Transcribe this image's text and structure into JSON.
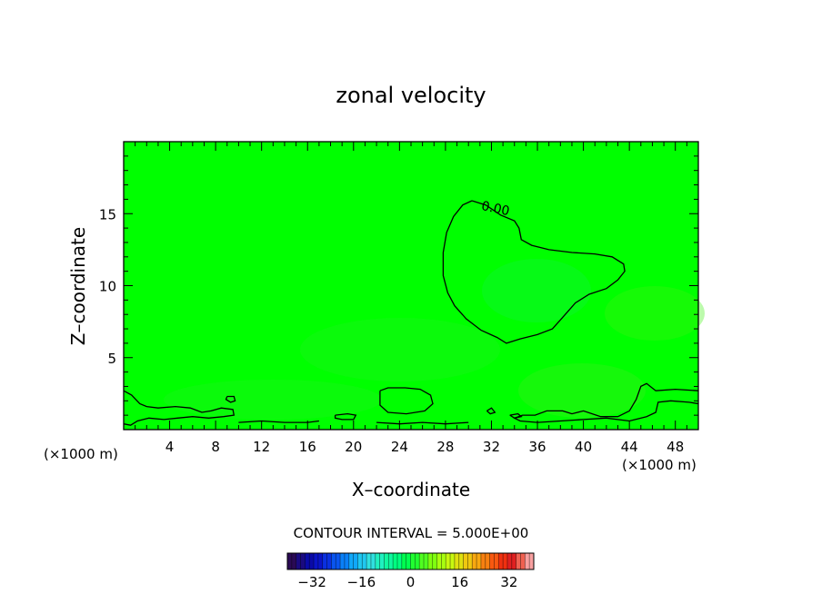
{
  "chart_data": {
    "type": "heatmap",
    "title": "zonal velocity",
    "xlabel": "X–coordinate",
    "ylabel": "Z–coordinate",
    "x_unit_left": "(×1000 m)",
    "x_unit_right": "(×1000 m)",
    "xlim": [
      0,
      50
    ],
    "ylim": [
      0,
      20
    ],
    "x_ticks": [
      4,
      8,
      12,
      16,
      20,
      24,
      28,
      32,
      36,
      40,
      44,
      48
    ],
    "x_tick_labels": [
      "4",
      "8",
      "12",
      "16",
      "20",
      "24",
      "28",
      "32",
      "36",
      "40",
      "44",
      "48"
    ],
    "y_ticks": [
      5,
      10,
      15
    ],
    "y_tick_labels": [
      "5",
      "10",
      "15"
    ],
    "field_color": "#00ff00",
    "contour_interval_label": "CONTOUR INTERVAL = 5.000E+00",
    "contour_label": "0.00",
    "contour_level": 0.0,
    "contours": [
      {
        "level": 0.0,
        "points": [
          [
            30.3,
            15.9
          ],
          [
            29.5,
            15.6
          ],
          [
            28.7,
            14.8
          ],
          [
            28.1,
            13.7
          ],
          [
            27.8,
            12.3
          ],
          [
            27.8,
            10.7
          ],
          [
            28.2,
            9.5
          ],
          [
            28.8,
            8.6
          ],
          [
            29.8,
            7.7
          ],
          [
            31.1,
            6.9
          ],
          [
            32.5,
            6.4
          ],
          [
            33.3,
            6.0
          ],
          [
            34.5,
            6.3
          ],
          [
            36.0,
            6.6
          ],
          [
            37.3,
            7.0
          ],
          [
            38.2,
            7.8
          ],
          [
            39.3,
            8.8
          ],
          [
            40.5,
            9.4
          ],
          [
            42.0,
            9.8
          ],
          [
            43.0,
            10.4
          ],
          [
            43.6,
            11.0
          ],
          [
            43.5,
            11.5
          ],
          [
            42.5,
            12.0
          ],
          [
            41.0,
            12.2
          ],
          [
            39.0,
            12.3
          ],
          [
            37.0,
            12.5
          ],
          [
            35.5,
            12.8
          ],
          [
            34.6,
            13.2
          ],
          [
            34.4,
            14.0
          ],
          [
            34.0,
            14.5
          ],
          [
            32.8,
            14.9
          ],
          [
            31.5,
            15.6
          ],
          [
            30.3,
            15.9
          ]
        ]
      },
      {
        "level": 0.0,
        "points": [
          [
            0.0,
            2.7
          ],
          [
            0.7,
            2.4
          ],
          [
            1.4,
            1.8
          ],
          [
            2.0,
            1.6
          ],
          [
            3.0,
            1.5
          ],
          [
            4.5,
            1.6
          ],
          [
            5.8,
            1.5
          ],
          [
            6.8,
            1.2
          ],
          [
            7.6,
            1.3
          ],
          [
            8.5,
            1.5
          ],
          [
            9.5,
            1.4
          ],
          [
            9.6,
            1.0
          ],
          [
            8.7,
            0.9
          ],
          [
            7.4,
            0.8
          ],
          [
            6.0,
            0.9
          ],
          [
            4.7,
            0.8
          ],
          [
            3.5,
            0.7
          ],
          [
            2.2,
            0.8
          ],
          [
            1.2,
            0.6
          ],
          [
            0.6,
            0.3
          ],
          [
            0.0,
            0.4
          ]
        ]
      },
      {
        "level": 0.0,
        "points": [
          [
            22.3,
            2.7
          ],
          [
            23.0,
            2.9
          ],
          [
            24.5,
            2.9
          ],
          [
            25.8,
            2.8
          ],
          [
            26.7,
            2.4
          ],
          [
            26.9,
            1.8
          ],
          [
            26.2,
            1.3
          ],
          [
            24.6,
            1.1
          ],
          [
            23.0,
            1.2
          ],
          [
            22.3,
            1.7
          ],
          [
            22.3,
            2.7
          ]
        ]
      },
      {
        "level": 0.0,
        "points": [
          [
            50.0,
            2.7
          ],
          [
            48.0,
            2.8
          ],
          [
            46.3,
            2.7
          ],
          [
            45.5,
            3.2
          ],
          [
            45.0,
            3.0
          ],
          [
            44.6,
            2.1
          ],
          [
            44.0,
            1.3
          ],
          [
            43.0,
            0.9
          ],
          [
            41.5,
            0.9
          ],
          [
            40.0,
            1.3
          ],
          [
            39.0,
            1.1
          ],
          [
            38.2,
            1.3
          ],
          [
            36.8,
            1.3
          ],
          [
            35.8,
            1.0
          ],
          [
            34.7,
            1.0
          ],
          [
            34.0,
            0.8
          ],
          [
            34.5,
            0.6
          ],
          [
            36.0,
            0.5
          ],
          [
            38.0,
            0.6
          ],
          [
            40.0,
            0.7
          ],
          [
            42.0,
            0.8
          ],
          [
            44.0,
            0.6
          ],
          [
            45.5,
            0.9
          ],
          [
            46.3,
            1.2
          ],
          [
            46.5,
            1.9
          ],
          [
            47.6,
            2.0
          ],
          [
            49.2,
            1.9
          ],
          [
            50.0,
            1.8
          ]
        ]
      },
      {
        "level": 0.0,
        "points": [
          [
            9.0,
            2.3
          ],
          [
            9.6,
            2.3
          ],
          [
            9.7,
            2.0
          ],
          [
            9.3,
            1.9
          ],
          [
            8.9,
            2.1
          ],
          [
            9.0,
            2.3
          ]
        ]
      },
      {
        "level": 0.0,
        "points": [
          [
            18.4,
            1.0
          ],
          [
            19.5,
            1.1
          ],
          [
            20.2,
            1.0
          ],
          [
            20.0,
            0.7
          ],
          [
            19.0,
            0.7
          ],
          [
            18.4,
            0.8
          ],
          [
            18.4,
            1.0
          ]
        ]
      },
      {
        "level": 0.0,
        "points": [
          [
            10.0,
            0.5
          ],
          [
            12.0,
            0.6
          ],
          [
            14.0,
            0.5
          ],
          [
            16.0,
            0.5
          ],
          [
            17.0,
            0.6
          ]
        ]
      },
      {
        "level": 0.0,
        "points": [
          [
            22.0,
            0.5
          ],
          [
            24.0,
            0.4
          ],
          [
            26.0,
            0.5
          ],
          [
            28.0,
            0.4
          ],
          [
            30.0,
            0.5
          ]
        ]
      },
      {
        "level": 0.0,
        "points": [
          [
            31.6,
            1.3
          ],
          [
            32.0,
            1.5
          ],
          [
            32.3,
            1.2
          ],
          [
            31.9,
            1.1
          ],
          [
            31.6,
            1.3
          ]
        ]
      },
      {
        "level": 0.0,
        "points": [
          [
            33.6,
            1.0
          ],
          [
            34.3,
            1.1
          ],
          [
            34.6,
            0.9
          ],
          [
            34.0,
            0.8
          ],
          [
            33.6,
            1.0
          ]
        ]
      }
    ],
    "colorbar": {
      "ticks": [
        -32,
        -16,
        0,
        16,
        32
      ],
      "tick_labels": [
        "−32",
        "−16",
        "0",
        "16",
        "32"
      ],
      "range": [
        -40,
        40
      ],
      "colors": [
        "#2a0a55",
        "#1a0a80",
        "#0a0aa8",
        "#0a14c8",
        "#0a30e0",
        "#0a55f0",
        "#0a80f8",
        "#10a8f8",
        "#20c8f0",
        "#30e0e0",
        "#20f0c0",
        "#10f8a0",
        "#00ff80",
        "#00ff50",
        "#20ff30",
        "#50ff20",
        "#80ff10",
        "#a8ff10",
        "#c8f810",
        "#e0e010",
        "#f0c810",
        "#f8a810",
        "#f88010",
        "#f85810",
        "#f03010",
        "#e02020",
        "#f06050",
        "#f8a0a0"
      ]
    }
  }
}
